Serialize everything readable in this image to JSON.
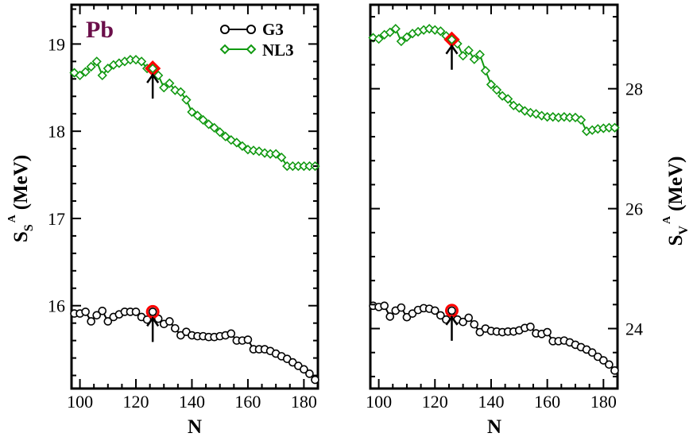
{
  "colors": {
    "nl3": "#119911",
    "g3": "#000000",
    "highlight": "#ff0000",
    "pb_label": "#6b0f4a",
    "axis": "#000000"
  },
  "annotation": {
    "label": "Pb"
  },
  "legend": [
    {
      "name": "G3",
      "marker": "circle"
    },
    {
      "name": "NL3",
      "marker": "diamond"
    }
  ],
  "chart_data": [
    {
      "type": "line",
      "panel": "left",
      "xlabel": "N",
      "ylabel": {
        "main": "S",
        "sub": "S",
        "sup": "A",
        "units": "(MeV)"
      },
      "xlim": [
        97,
        185
      ],
      "ylim": [
        15.05,
        19.45
      ],
      "xticks": [
        "100",
        "120",
        "140",
        "160",
        "180"
      ],
      "yticks": [
        "16",
        "17",
        "18",
        "19"
      ],
      "highlight_N": 126,
      "series": [
        {
          "name": "NL3",
          "x": [
            98,
            100,
            102,
            104,
            106,
            108,
            110,
            112,
            114,
            116,
            118,
            120,
            122,
            124,
            126,
            128,
            130,
            132,
            134,
            136,
            138,
            140,
            142,
            144,
            146,
            148,
            150,
            152,
            154,
            156,
            158,
            160,
            162,
            164,
            166,
            168,
            170,
            172,
            174,
            176,
            178,
            180,
            182,
            184
          ],
          "values": [
            18.67,
            18.64,
            18.68,
            18.74,
            18.8,
            18.64,
            18.72,
            18.76,
            18.78,
            18.8,
            18.82,
            18.82,
            18.8,
            18.72,
            18.72,
            18.64,
            18.5,
            18.55,
            18.47,
            18.45,
            18.36,
            18.22,
            18.18,
            18.13,
            18.08,
            18.04,
            17.99,
            17.94,
            17.9,
            17.87,
            17.83,
            17.79,
            17.78,
            17.77,
            17.75,
            17.74,
            17.74,
            17.7,
            17.6,
            17.6,
            17.6,
            17.6,
            17.6,
            17.6
          ]
        },
        {
          "name": "G3",
          "x": [
            98,
            100,
            102,
            104,
            106,
            108,
            110,
            112,
            114,
            116,
            118,
            120,
            122,
            124,
            126,
            128,
            130,
            132,
            134,
            136,
            138,
            140,
            142,
            144,
            146,
            148,
            150,
            152,
            154,
            156,
            158,
            160,
            162,
            164,
            166,
            168,
            170,
            172,
            174,
            176,
            178,
            180,
            182,
            184
          ],
          "values": [
            15.91,
            15.91,
            15.93,
            15.82,
            15.89,
            15.94,
            15.82,
            15.87,
            15.9,
            15.93,
            15.93,
            15.93,
            15.87,
            15.84,
            15.93,
            15.85,
            15.79,
            15.82,
            15.74,
            15.66,
            15.7,
            15.66,
            15.65,
            15.65,
            15.64,
            15.64,
            15.65,
            15.66,
            15.68,
            15.6,
            15.6,
            15.61,
            15.5,
            15.5,
            15.5,
            15.48,
            15.45,
            15.42,
            15.39,
            15.35,
            15.31,
            15.27,
            15.22,
            15.15
          ]
        }
      ]
    },
    {
      "type": "line",
      "panel": "right",
      "xlabel": "N",
      "ylabel": {
        "main": "S",
        "sub": "V",
        "sup": "A",
        "units": "(MeV)"
      },
      "xlim": [
        97,
        185
      ],
      "ylim": [
        23.0,
        29.4
      ],
      "xticks": [
        "100",
        "120",
        "140",
        "160",
        "180"
      ],
      "yticks": [
        "24",
        "26",
        "28"
      ],
      "highlight_N": 126,
      "series": [
        {
          "name": "NL3",
          "x": [
            98,
            100,
            102,
            104,
            106,
            108,
            110,
            112,
            114,
            116,
            118,
            120,
            122,
            124,
            126,
            128,
            130,
            132,
            134,
            136,
            138,
            140,
            142,
            144,
            146,
            148,
            150,
            152,
            154,
            156,
            158,
            160,
            162,
            164,
            166,
            168,
            170,
            172,
            174,
            176,
            178,
            180,
            182,
            184
          ],
          "values": [
            28.85,
            28.83,
            28.9,
            28.94,
            29.0,
            28.79,
            28.86,
            28.92,
            28.95,
            28.98,
            29.0,
            28.98,
            28.96,
            28.88,
            28.82,
            28.75,
            28.55,
            28.64,
            28.49,
            28.57,
            28.3,
            28.07,
            27.98,
            27.88,
            27.83,
            27.72,
            27.68,
            27.63,
            27.6,
            27.58,
            27.55,
            27.53,
            27.53,
            27.52,
            27.53,
            27.52,
            27.52,
            27.48,
            27.29,
            27.31,
            27.33,
            27.34,
            27.35,
            27.35
          ]
        },
        {
          "name": "G3",
          "x": [
            98,
            100,
            102,
            104,
            106,
            108,
            110,
            112,
            114,
            116,
            118,
            120,
            122,
            124,
            126,
            128,
            130,
            132,
            134,
            136,
            138,
            140,
            142,
            144,
            146,
            148,
            150,
            152,
            154,
            156,
            158,
            160,
            162,
            164,
            166,
            168,
            170,
            172,
            174,
            176,
            178,
            180,
            182,
            184
          ],
          "values": [
            24.38,
            24.36,
            24.38,
            24.2,
            24.3,
            24.35,
            24.19,
            24.25,
            24.31,
            24.34,
            24.33,
            24.3,
            24.22,
            24.15,
            24.3,
            24.15,
            24.11,
            24.18,
            24.07,
            23.94,
            24.0,
            23.96,
            23.95,
            23.94,
            23.95,
            23.95,
            23.97,
            24.01,
            24.03,
            23.92,
            23.91,
            23.94,
            23.79,
            23.79,
            23.8,
            23.77,
            23.73,
            23.69,
            23.65,
            23.6,
            23.53,
            23.47,
            23.4,
            23.3
          ]
        }
      ]
    }
  ]
}
